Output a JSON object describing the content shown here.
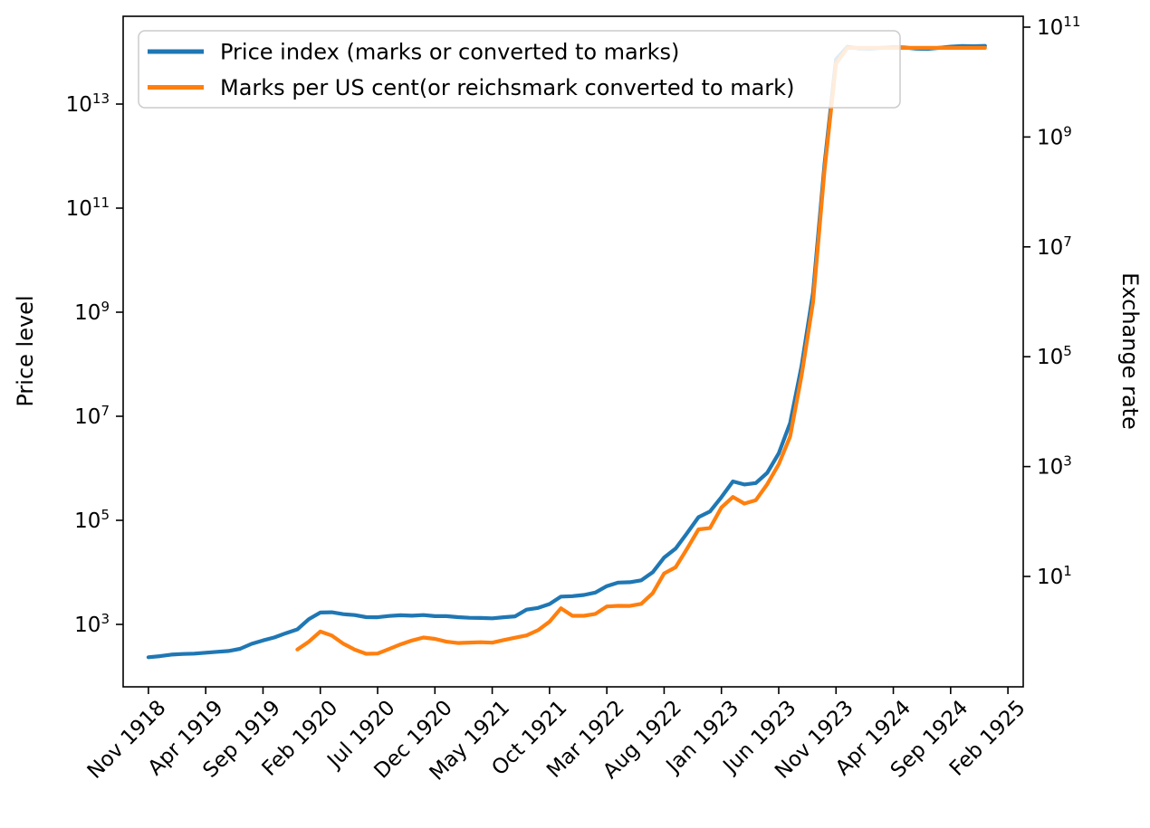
{
  "chart_data": {
    "type": "line",
    "title": "",
    "description": "German hyperinflation 1918-1924: price level and exchange rate on twin log axes",
    "grid": false,
    "legend_position": "upper left",
    "x_axis": {
      "tick_labels": [
        "Nov 1918",
        "Apr 1919",
        "Sep 1919",
        "Feb 1920",
        "Jul 1920",
        "Dec 1920",
        "May 1921",
        "Oct 1921",
        "Mar 1922",
        "Aug 1922",
        "Jan 1923",
        "Jun 1923",
        "Nov 1923",
        "Apr 1924",
        "Sep 1924",
        "Feb 1925"
      ],
      "tick_month_offsets": [
        0,
        5,
        10,
        15,
        20,
        25,
        30,
        35,
        40,
        45,
        50,
        55,
        60,
        65,
        70,
        75
      ],
      "label_rotation_deg": 45
    },
    "left_axis": {
      "label": "Price level",
      "scale": "log",
      "tick_labels": [
        "10^3",
        "10^5",
        "10^7",
        "10^9",
        "10^11",
        "10^13"
      ],
      "tick_exponents": [
        3,
        5,
        7,
        9,
        11,
        13
      ],
      "range_log10": [
        1.78,
        14.7
      ]
    },
    "right_axis": {
      "label": "Exchange rate",
      "scale": "log",
      "tick_labels": [
        "10^1",
        "10^3",
        "10^5",
        "10^7",
        "10^9",
        "10^11"
      ],
      "tick_exponents": [
        1,
        3,
        5,
        7,
        9,
        11
      ],
      "range_log10": [
        -0.96,
        11.17
      ]
    },
    "series": [
      {
        "name": "Price index (marks or converted to marks)",
        "color": "#1f77b4",
        "axis": "left",
        "start_month": "Nov 1918",
        "start_month_offset": 0,
        "values": [
          234,
          245,
          262,
          270,
          274,
          286,
          297,
          308,
          339,
          422,
          493,
          562,
          678,
          803,
          1260,
          1690,
          1710,
          1570,
          1510,
          1380,
          1370,
          1450,
          1500,
          1470,
          1510,
          1440,
          1440,
          1380,
          1340,
          1330,
          1310,
          1370,
          1430,
          1920,
          2070,
          2460,
          3420,
          3490,
          3670,
          4100,
          5430,
          6360,
          6460,
          7030,
          10060,
          19200,
          28700,
          56600,
          115100,
          147480,
          278500,
          558500,
          488800,
          521200,
          817000,
          1938500,
          7478700,
          94404100,
          2394889300,
          709480000000,
          72557000000000,
          126160000000000,
          117300000000000,
          116200000000000,
          120400000000000,
          124000000000000,
          122000000000000,
          115800000000000,
          115100000000000,
          120200000000000,
          126900000000000,
          131000000000000,
          129000000000000,
          131200000000000
        ]
      },
      {
        "name": "Marks per US cent(or reichsmark converted to mark)",
        "color": "#ff7f0e",
        "axis": "right",
        "start_month": "Dec 1919",
        "start_month_offset": 13,
        "values": [
          0.468,
          0.648,
          0.991,
          0.839,
          0.596,
          0.465,
          0.391,
          0.395,
          0.477,
          0.58,
          0.682,
          0.772,
          0.73,
          0.649,
          0.613,
          0.624,
          0.635,
          0.623,
          0.694,
          0.767,
          0.843,
          1.049,
          1.502,
          2.63,
          1.919,
          1.918,
          2.078,
          2.842,
          2.91,
          2.901,
          3.174,
          4.932,
          11.35,
          14.66,
          31.81,
          71.83,
          75.89,
          179.7,
          279.2,
          211.9,
          244.8,
          476.7,
          1100,
          3534,
          46205,
          988600,
          252600000,
          21936000000,
          42000000000,
          42000000000,
          42000000000,
          42000000000,
          42000000000,
          42000000000,
          42000000000,
          42000000000,
          42000000000,
          42000000000,
          42000000000,
          42000000000,
          42000000000
        ]
      }
    ]
  }
}
